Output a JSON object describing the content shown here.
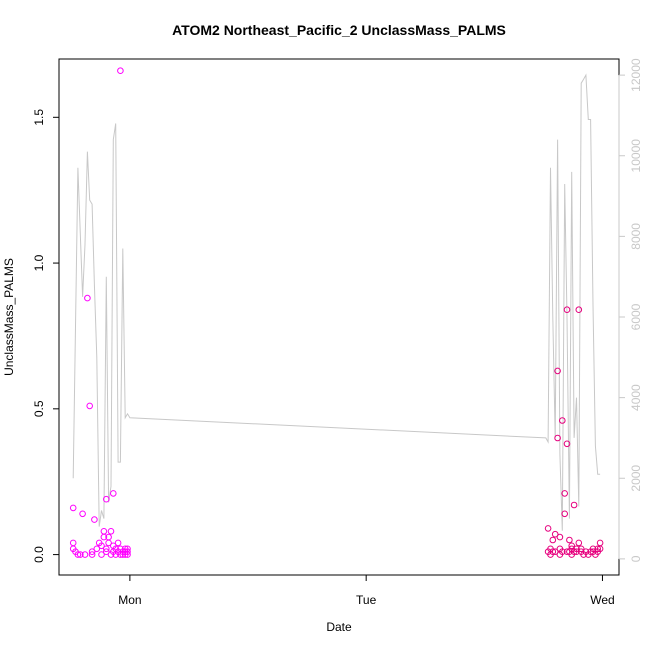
{
  "chart_data": {
    "type": "scatter",
    "title": "ATOM2 Northeast_Pacific_2 UnclassMass_PALMS",
    "xlabel": "Date",
    "ylabel": "UnclassMass_PALMS",
    "x_axis": {
      "ticks": [
        {
          "value": 1.0,
          "label": "Mon"
        },
        {
          "value": 2.0,
          "label": "Tue"
        },
        {
          "value": 3.0,
          "label": "Wed"
        }
      ],
      "range_days": [
        0.7,
        3.07
      ]
    },
    "y_axis_left": {
      "range": [
        -0.07,
        1.7
      ],
      "ticks": [
        0.0,
        0.5,
        1.0,
        1.5
      ],
      "tick_labels": [
        "0.0",
        "0.5",
        "1.0",
        "1.5"
      ]
    },
    "y_axis_right": {
      "range": [
        -400,
        12400
      ],
      "ticks": [
        0,
        2000,
        4000,
        6000,
        8000,
        10000,
        12000
      ],
      "tick_labels": [
        "0",
        "2000",
        "4000",
        "6000",
        "8000",
        "10000",
        "12000"
      ],
      "color": "#c8c8c8"
    },
    "series": [
      {
        "kind": "points",
        "axis": "left",
        "color": "#ff00ff",
        "marker": "open-circle",
        "x": [
          0.76,
          0.76,
          0.76,
          0.77,
          0.78,
          0.79,
          0.8,
          0.81,
          0.82,
          0.83,
          0.84,
          0.84,
          0.85,
          0.86,
          0.87,
          0.88,
          0.88,
          0.89,
          0.89,
          0.9,
          0.9,
          0.9,
          0.91,
          0.91,
          0.92,
          0.92,
          0.93,
          0.93,
          0.93,
          0.94,
          0.94,
          0.95,
          0.95,
          0.96,
          0.96,
          0.96,
          0.97,
          0.97,
          0.98,
          0.98,
          0.98,
          0.99,
          0.99,
          0.99
        ],
        "y": [
          0.16,
          0.04,
          0.02,
          0.01,
          0.0,
          0.0,
          0.14,
          0.0,
          0.88,
          0.51,
          0.0,
          0.01,
          0.12,
          0.02,
          0.04,
          0.03,
          0.0,
          0.08,
          0.06,
          0.01,
          0.02,
          0.19,
          0.04,
          0.06,
          0.0,
          0.08,
          0.21,
          0.03,
          0.01,
          0.0,
          0.02,
          0.04,
          0.01,
          0.0,
          0.02,
          1.66,
          0.01,
          0.0,
          0.02,
          0.0,
          0.01,
          0.01,
          0.0,
          0.02
        ]
      },
      {
        "kind": "points",
        "axis": "left",
        "color": "#e6007e",
        "marker": "open-circle",
        "x": [
          2.77,
          2.77,
          2.78,
          2.78,
          2.79,
          2.79,
          2.8,
          2.8,
          2.81,
          2.81,
          2.82,
          2.82,
          2.82,
          2.83,
          2.83,
          2.84,
          2.84,
          2.85,
          2.85,
          2.85,
          2.86,
          2.86,
          2.87,
          2.87,
          2.87,
          2.88,
          2.88,
          2.89,
          2.89,
          2.9,
          2.9,
          2.91,
          2.91,
          2.92,
          2.93,
          2.94,
          2.95,
          2.96,
          2.96,
          2.97,
          2.98,
          2.98,
          2.99,
          2.99
        ],
        "y": [
          0.09,
          0.01,
          0.02,
          0.0,
          0.05,
          0.01,
          0.07,
          0.01,
          0.63,
          0.4,
          0.0,
          0.02,
          0.06,
          0.01,
          0.46,
          0.21,
          0.14,
          0.01,
          0.84,
          0.38,
          0.05,
          0.01,
          0.02,
          0.03,
          0.0,
          0.17,
          0.01,
          0.02,
          0.01,
          0.84,
          0.04,
          0.02,
          0.01,
          0.0,
          0.01,
          0.0,
          0.01,
          0.01,
          0.02,
          0.0,
          0.01,
          0.02,
          0.04,
          0.02
        ]
      },
      {
        "kind": "line",
        "axis": "right",
        "color": "#c8c8c8",
        "x": [
          0.76,
          0.78,
          0.8,
          0.81,
          0.82,
          0.83,
          0.84,
          0.85,
          0.86,
          0.87,
          0.88,
          0.89,
          0.9,
          0.91,
          0.92,
          0.93,
          0.94,
          0.95,
          0.96,
          0.97,
          0.98,
          0.99,
          1.0,
          2.76,
          2.77,
          2.78,
          2.79,
          2.8,
          2.81,
          2.82,
          2.83,
          2.84,
          2.85,
          2.86,
          2.87,
          2.88,
          2.89,
          2.9,
          2.91,
          2.92,
          2.93,
          2.94,
          2.95,
          2.96,
          2.97,
          2.98,
          2.99
        ],
        "y": [
          2000,
          9700,
          6500,
          7800,
          10100,
          8900,
          8800,
          6800,
          5000,
          800,
          1200,
          1000,
          7000,
          1400,
          1800,
          10400,
          10800,
          2400,
          2400,
          7700,
          3500,
          3600,
          3500,
          3000,
          2900,
          9700,
          6000,
          3000,
          10400,
          2600,
          700,
          9300,
          6000,
          1000,
          9600,
          3000,
          4000,
          1300,
          11800,
          11900,
          12000,
          10900,
          10900,
          6300,
          2800,
          2100,
          2100
        ]
      }
    ]
  }
}
